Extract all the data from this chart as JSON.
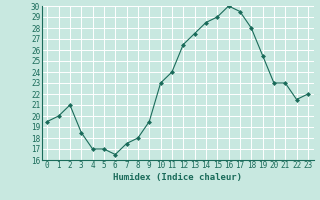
{
  "x": [
    0,
    1,
    2,
    3,
    4,
    5,
    6,
    7,
    8,
    9,
    10,
    11,
    12,
    13,
    14,
    15,
    16,
    17,
    18,
    19,
    20,
    21,
    22,
    23
  ],
  "y": [
    19.5,
    20.0,
    21.0,
    18.5,
    17.0,
    17.0,
    16.5,
    17.5,
    18.0,
    19.5,
    23.0,
    24.0,
    26.5,
    27.5,
    28.5,
    29.0,
    30.0,
    29.5,
    28.0,
    25.5,
    23.0,
    23.0,
    21.5,
    22.0
  ],
  "line_color": "#1a6b5a",
  "marker": "D",
  "marker_size": 2.0,
  "bg_color": "#c8e8e0",
  "grid_color": "#ffffff",
  "xlabel": "Humidex (Indice chaleur)",
  "ylim": [
    16,
    30
  ],
  "xlim_min": -0.5,
  "xlim_max": 23.5,
  "yticks": [
    16,
    17,
    18,
    19,
    20,
    21,
    22,
    23,
    24,
    25,
    26,
    27,
    28,
    29,
    30
  ],
  "xticks": [
    0,
    1,
    2,
    3,
    4,
    5,
    6,
    7,
    8,
    9,
    10,
    11,
    12,
    13,
    14,
    15,
    16,
    17,
    18,
    19,
    20,
    21,
    22,
    23
  ],
  "tick_fontsize": 5.5,
  "label_fontsize": 6.5
}
